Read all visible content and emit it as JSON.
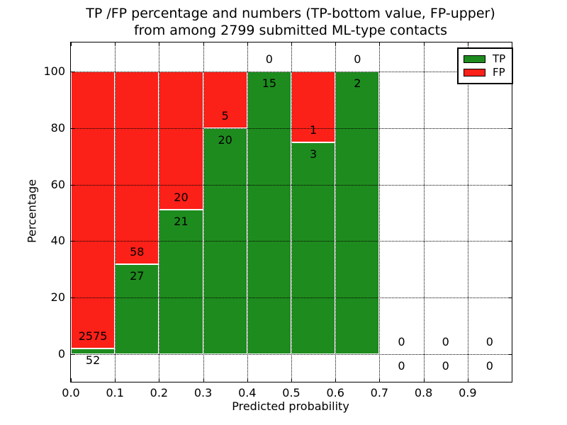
{
  "title": {
    "line1": "TP /FP percentage and numbers (TP-bottom value, FP-upper)",
    "line2": "from among 2799 submitted ML-type contacts"
  },
  "axis": {
    "xlabel": "Predicted probability",
    "ylabel": "Percentage"
  },
  "legend": {
    "position": "upper right",
    "items": [
      {
        "label": "TP",
        "color": "#1e8b1e"
      },
      {
        "label": "FP",
        "color": "#fb2018"
      }
    ]
  },
  "chart_data": {
    "type": "bar",
    "stacked": true,
    "orientation": "vertical",
    "title": "TP /FP percentage and numbers (TP-bottom value, FP-upper) from among 2799 submitted ML-type contacts",
    "xlabel": "Predicted probability",
    "ylabel": "Percentage",
    "grid": true,
    "legend_position": "upper right",
    "total_contacts": 2799,
    "xlim": [
      0.0,
      1.0
    ],
    "ylim": [
      -10,
      110
    ],
    "x_tick_labels": [
      "0.0",
      "0.1",
      "0.2",
      "0.3",
      "0.4",
      "0.5",
      "0.6",
      "0.7",
      "0.8",
      "0.9"
    ],
    "y_tick_values": [
      0,
      20,
      40,
      60,
      80,
      100
    ],
    "bucket_starts": [
      0.0,
      0.1,
      0.2,
      0.3,
      0.4,
      0.5,
      0.6,
      0.7,
      0.8,
      0.9
    ],
    "bucket_width": 0.1,
    "series": [
      {
        "name": "TP",
        "color": "#1e8b1e",
        "stack_position": "bottom",
        "counts": [
          52,
          27,
          21,
          20,
          15,
          3,
          2,
          0,
          0,
          0
        ]
      },
      {
        "name": "FP",
        "color": "#fb2018",
        "stack_position": "top",
        "counts": [
          2575,
          58,
          20,
          5,
          0,
          1,
          0,
          0,
          0,
          0
        ]
      }
    ],
    "tp_percent_heights": [
      1.98,
      31.76,
      51.22,
      80.0,
      100.0,
      75.0,
      100.0,
      0,
      0,
      0
    ]
  }
}
